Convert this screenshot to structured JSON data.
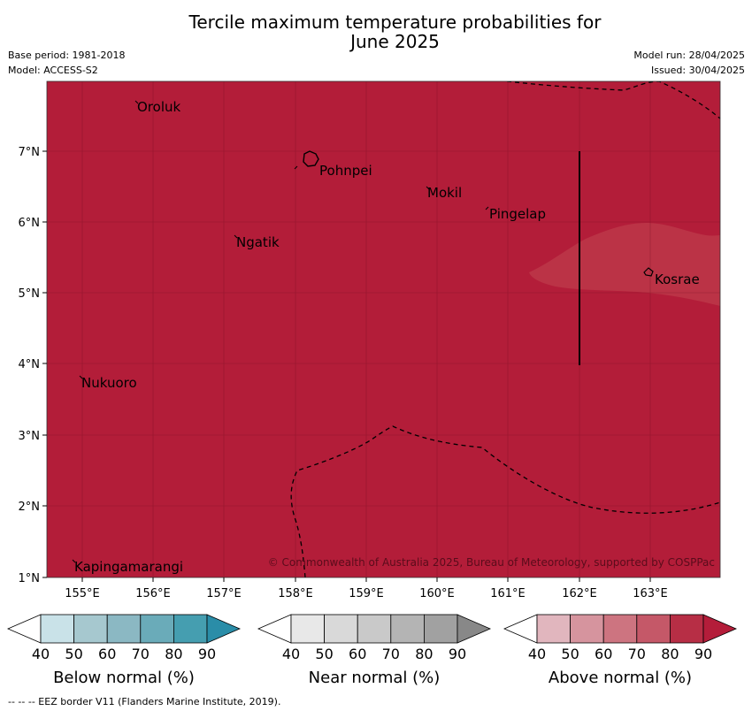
{
  "title_line1": "Tercile maximum temperature probabilities for",
  "title_line2": "June 2025",
  "base_period": "Base period: 1981-2018",
  "model": "Model: ACCESS-S2",
  "model_run": "Model run: 28/04/2025",
  "issued": "Issued: 30/04/2025",
  "copyright": "© Commonwealth of Australia 2025, Bureau of Meteorology, supported by COSPPac",
  "footer_note": "--  --  -- EEZ border V11 (Flanders Marine Institute, 2019).",
  "lon_ticks": [
    "155°E",
    "156°E",
    "157°E",
    "158°E",
    "159°E",
    "160°E",
    "161°E",
    "162°E",
    "163°E"
  ],
  "lat_ticks": [
    "7°N",
    "6°N",
    "5°N",
    "4°N",
    "3°N",
    "2°N",
    "1°N"
  ],
  "places": [
    "Oroluk",
    "Pohnpei",
    "Mokil",
    "Pingelap",
    "Ngatik",
    "Kosrae",
    "Nukuoro",
    "Kapingamarangi"
  ],
  "colorbars": [
    {
      "title": "Below normal (%)",
      "labels": [
        "40",
        "50",
        "60",
        "70",
        "80",
        "90"
      ],
      "colors": [
        "#ffffff",
        "#c9e2e8",
        "#a6c8cf",
        "#8bb8c3",
        "#6aabb9",
        "#459eb0",
        "#2a8da8"
      ]
    },
    {
      "title": "Near normal (%)",
      "labels": [
        "40",
        "50",
        "60",
        "70",
        "80",
        "90"
      ],
      "colors": [
        "#ffffff",
        "#e8e8e8",
        "#d9d9d9",
        "#c9c9c9",
        "#b4b4b4",
        "#a1a1a1",
        "#888888"
      ]
    },
    {
      "title": "Above normal (%)",
      "labels": [
        "40",
        "50",
        "60",
        "70",
        "80",
        "90"
      ],
      "colors": [
        "#ffffff",
        "#e1b6be",
        "#d6949e",
        "#cd7480",
        "#c55868",
        "#b72e45",
        "#b41d3a"
      ]
    }
  ],
  "map_colors": {
    "main": "#b31d39",
    "lighter": "#b8303f"
  }
}
